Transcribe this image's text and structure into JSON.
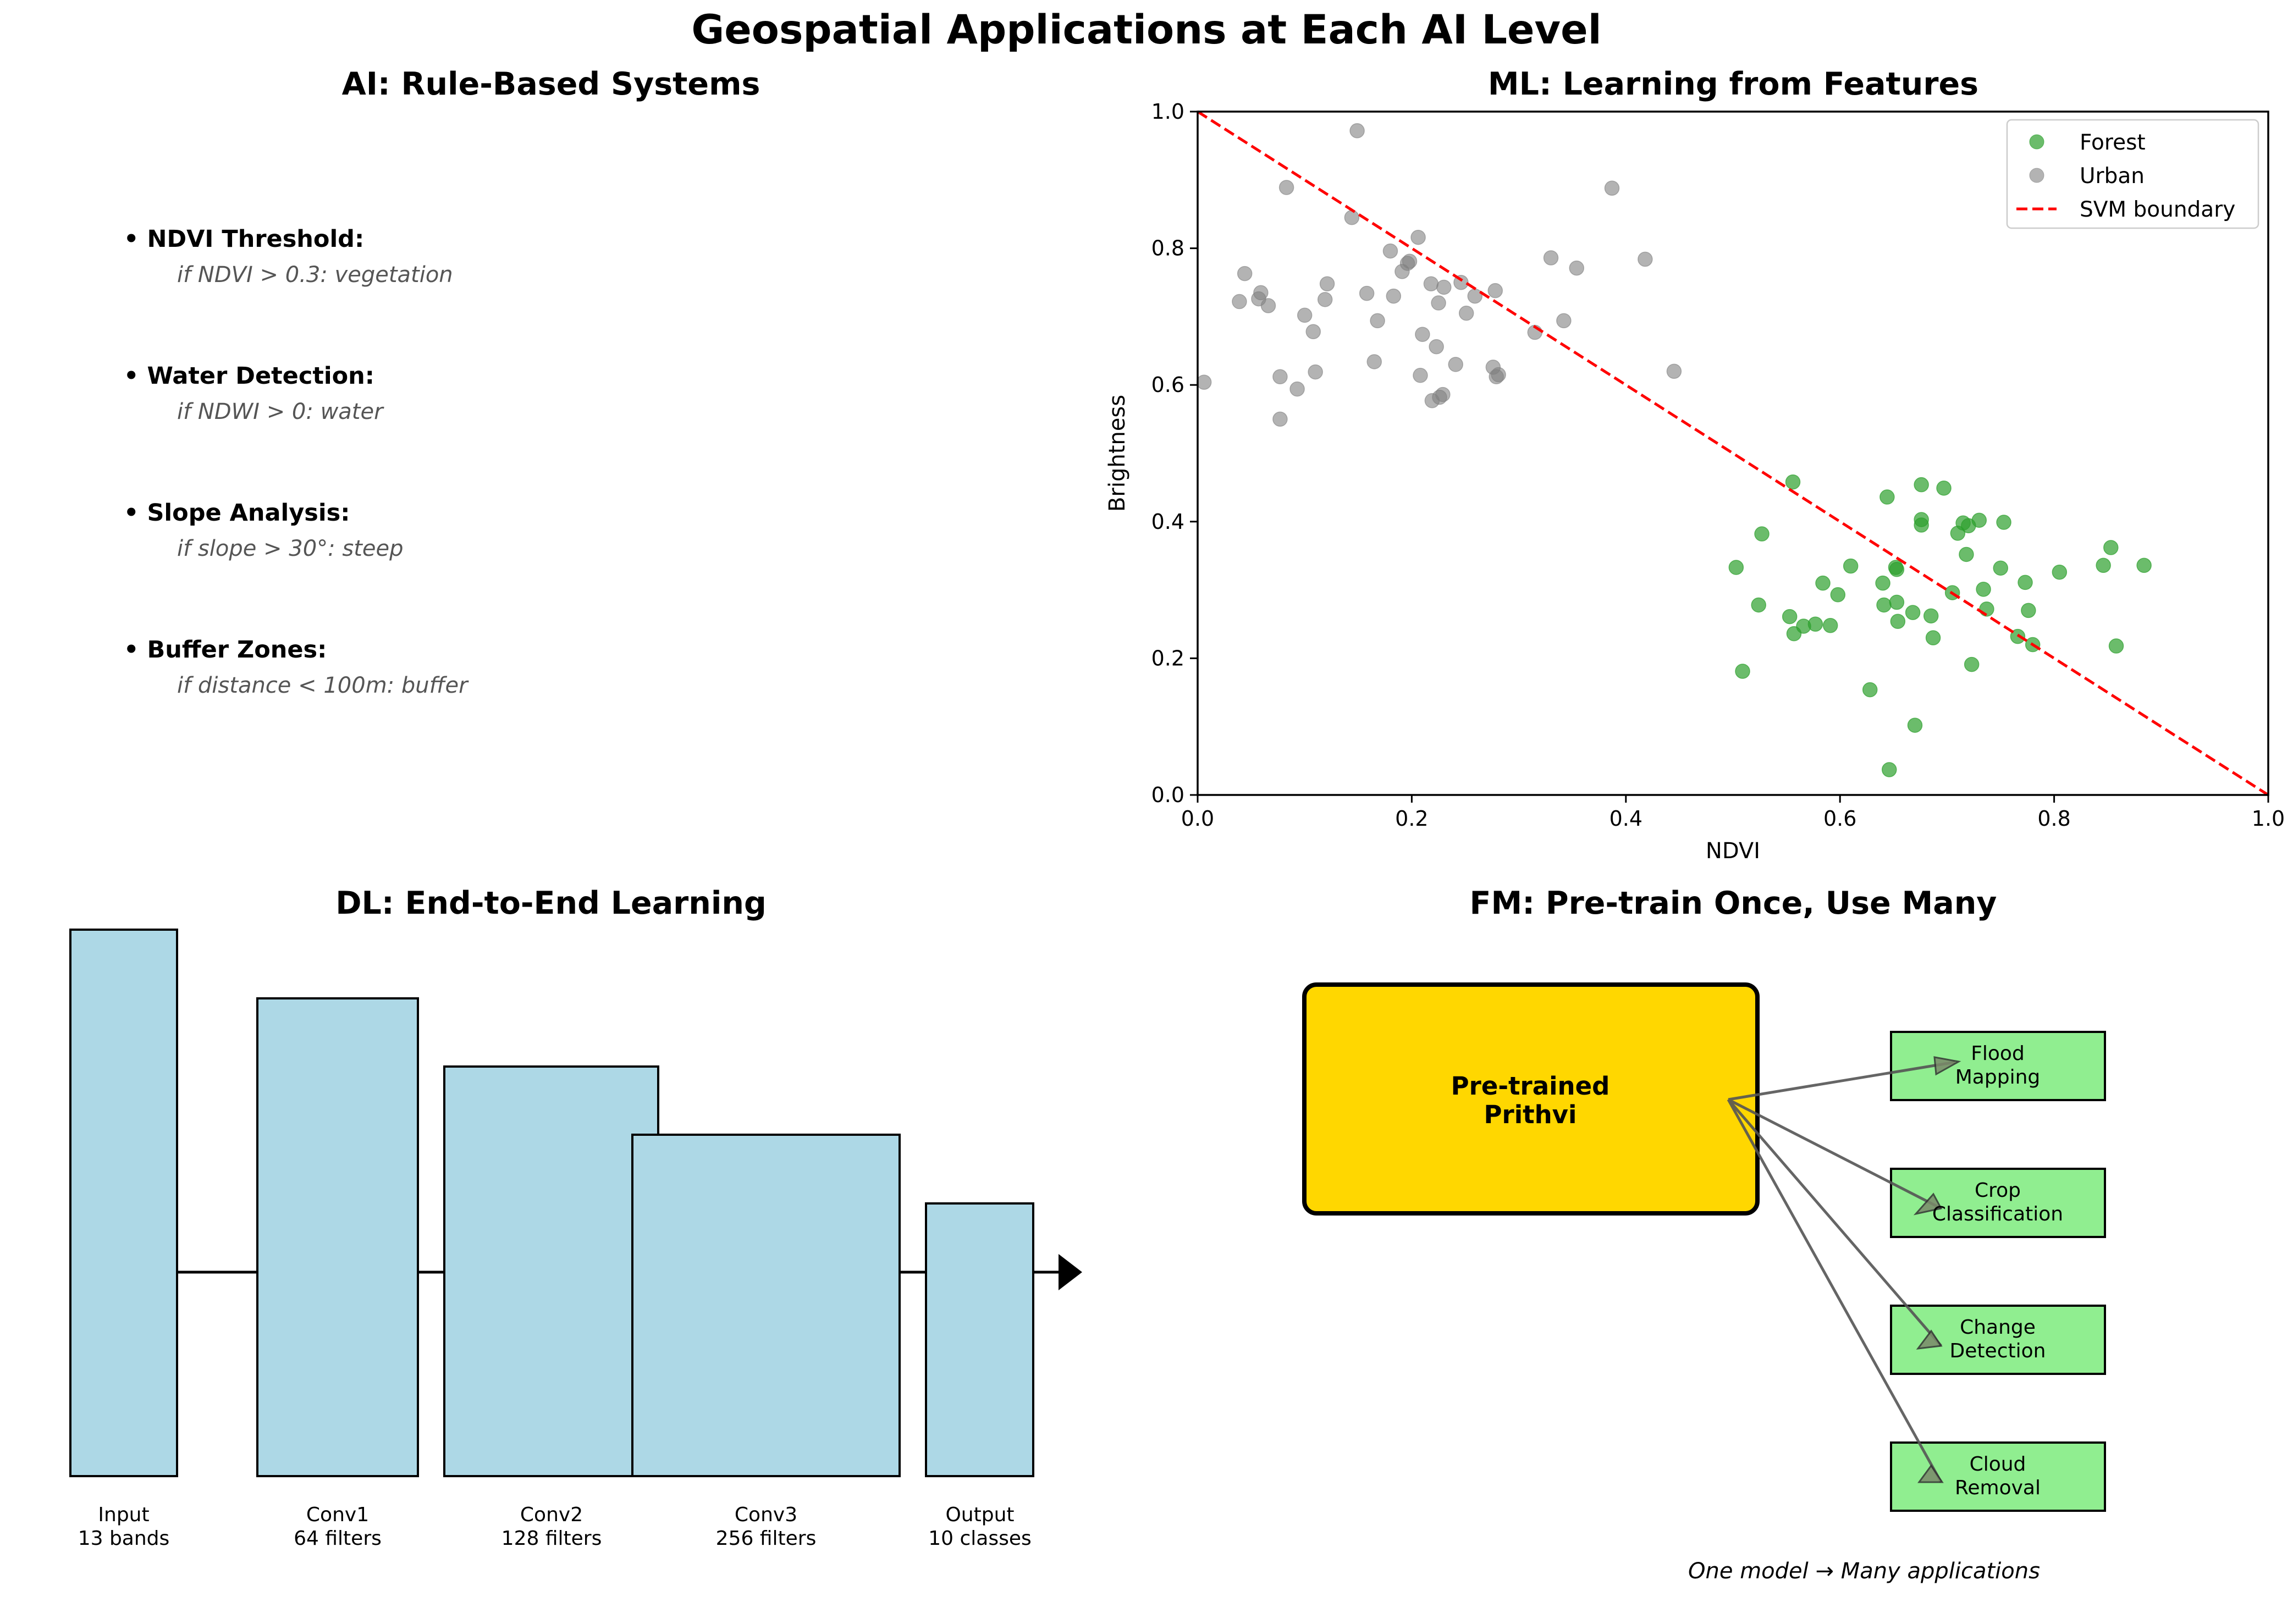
{
  "title": "Geospatial Applications at Each AI Level",
  "ai_panel": {
    "title": "AI: Rule-Based Systems",
    "rules": [
      {
        "name": "• NDVI Threshold:",
        "rule": "if NDVI > 0.3: vegetation"
      },
      {
        "name": "• Water Detection:",
        "rule": "if NDWI > 0: water"
      },
      {
        "name": "• Slope Analysis:",
        "rule": "if slope > 30°: steep"
      },
      {
        "name": "• Buffer Zones:",
        "rule": "if distance < 100m: buffer"
      }
    ]
  },
  "ml_panel": {
    "title": "ML: Learning from Features"
  },
  "chart_data": {
    "type": "scatter",
    "title": "ML: Learning from Features",
    "xlabel": "NDVI",
    "ylabel": "Brightness",
    "xlim": [
      0,
      1
    ],
    "ylim": [
      0,
      1
    ],
    "xticks": [
      "0.0",
      "0.2",
      "0.4",
      "0.6",
      "0.8",
      "1.0"
    ],
    "yticks": [
      "0.0",
      "0.2",
      "0.4",
      "0.6",
      "0.8",
      "1.0"
    ],
    "grid": false,
    "legend_position": "top-right",
    "series": [
      {
        "name": "Forest",
        "color": "#2ca02c",
        "points": [
          [
            0.556,
            0.458
          ],
          [
            0.527,
            0.382
          ],
          [
            0.503,
            0.333
          ],
          [
            0.524,
            0.278
          ],
          [
            0.509,
            0.181
          ],
          [
            0.553,
            0.261
          ],
          [
            0.557,
            0.236
          ],
          [
            0.566,
            0.247
          ],
          [
            0.577,
            0.25
          ],
          [
            0.584,
            0.31
          ],
          [
            0.591,
            0.248
          ],
          [
            0.598,
            0.293
          ],
          [
            0.61,
            0.335
          ],
          [
            0.628,
            0.154
          ],
          [
            0.64,
            0.31
          ],
          [
            0.641,
            0.278
          ],
          [
            0.644,
            0.436
          ],
          [
            0.646,
            0.037
          ],
          [
            0.652,
            0.333
          ],
          [
            0.653,
            0.33
          ],
          [
            0.653,
            0.282
          ],
          [
            0.654,
            0.254
          ],
          [
            0.668,
            0.267
          ],
          [
            0.67,
            0.102
          ],
          [
            0.676,
            0.395
          ],
          [
            0.676,
            0.403
          ],
          [
            0.676,
            0.454
          ],
          [
            0.685,
            0.262
          ],
          [
            0.687,
            0.23
          ],
          [
            0.697,
            0.449
          ],
          [
            0.705,
            0.296
          ],
          [
            0.71,
            0.383
          ],
          [
            0.715,
            0.398
          ],
          [
            0.718,
            0.352
          ],
          [
            0.72,
            0.394
          ],
          [
            0.723,
            0.191
          ],
          [
            0.73,
            0.402
          ],
          [
            0.734,
            0.301
          ],
          [
            0.737,
            0.272
          ],
          [
            0.75,
            0.332
          ],
          [
            0.753,
            0.399
          ],
          [
            0.766,
            0.232
          ],
          [
            0.773,
            0.311
          ],
          [
            0.776,
            0.27
          ],
          [
            0.78,
            0.22
          ],
          [
            0.805,
            0.326
          ],
          [
            0.846,
            0.336
          ],
          [
            0.853,
            0.362
          ],
          [
            0.858,
            0.218
          ],
          [
            0.884,
            0.336
          ]
        ]
      },
      {
        "name": "Urban",
        "color": "#808080",
        "points": [
          [
            0.006,
            0.604
          ],
          [
            0.039,
            0.722
          ],
          [
            0.044,
            0.763
          ],
          [
            0.057,
            0.726
          ],
          [
            0.059,
            0.735
          ],
          [
            0.066,
            0.716
          ],
          [
            0.077,
            0.612
          ],
          [
            0.077,
            0.55
          ],
          [
            0.083,
            0.889
          ],
          [
            0.093,
            0.594
          ],
          [
            0.1,
            0.702
          ],
          [
            0.108,
            0.678
          ],
          [
            0.11,
            0.619
          ],
          [
            0.119,
            0.725
          ],
          [
            0.121,
            0.748
          ],
          [
            0.144,
            0.845
          ],
          [
            0.149,
            0.972
          ],
          [
            0.158,
            0.734
          ],
          [
            0.165,
            0.634
          ],
          [
            0.168,
            0.694
          ],
          [
            0.18,
            0.796
          ],
          [
            0.183,
            0.73
          ],
          [
            0.191,
            0.766
          ],
          [
            0.196,
            0.778
          ],
          [
            0.198,
            0.781
          ],
          [
            0.206,
            0.816
          ],
          [
            0.208,
            0.614
          ],
          [
            0.21,
            0.674
          ],
          [
            0.218,
            0.748
          ],
          [
            0.219,
            0.577
          ],
          [
            0.223,
            0.656
          ],
          [
            0.225,
            0.72
          ],
          [
            0.226,
            0.582
          ],
          [
            0.229,
            0.586
          ],
          [
            0.23,
            0.743
          ],
          [
            0.241,
            0.63
          ],
          [
            0.246,
            0.75
          ],
          [
            0.251,
            0.705
          ],
          [
            0.259,
            0.73
          ],
          [
            0.276,
            0.626
          ],
          [
            0.278,
            0.738
          ],
          [
            0.279,
            0.612
          ],
          [
            0.281,
            0.615
          ],
          [
            0.315,
            0.677
          ],
          [
            0.33,
            0.786
          ],
          [
            0.342,
            0.694
          ],
          [
            0.354,
            0.771
          ],
          [
            0.387,
            0.888
          ],
          [
            0.418,
            0.784
          ],
          [
            0.445,
            0.62
          ]
        ]
      },
      {
        "name": "SVM boundary",
        "color": "#ff0000",
        "style": "dashed",
        "points": [
          [
            0,
            1
          ],
          [
            1,
            0
          ]
        ]
      }
    ]
  },
  "dl_panel": {
    "title": "DL: End-to-End Learning",
    "layers": [
      {
        "label": "Input\n13 bands"
      },
      {
        "label": "Conv1\n64 filters"
      },
      {
        "label": "Conv2\n128 filters"
      },
      {
        "label": "Conv3\n256 filters"
      },
      {
        "label": "Output\n10 classes"
      }
    ],
    "layer_color": "#add8e6"
  },
  "fm_panel": {
    "title": "FM: Pre-train Once, Use Many",
    "model": "Pre-trained\nPrithvi",
    "model_color": "#ffd700",
    "tasks": [
      "Flood\nMapping",
      "Crop\nClassification",
      "Change\nDetection",
      "Cloud\nRemoval"
    ],
    "task_color": "#90ee90",
    "caption": "One model → Many applications"
  }
}
